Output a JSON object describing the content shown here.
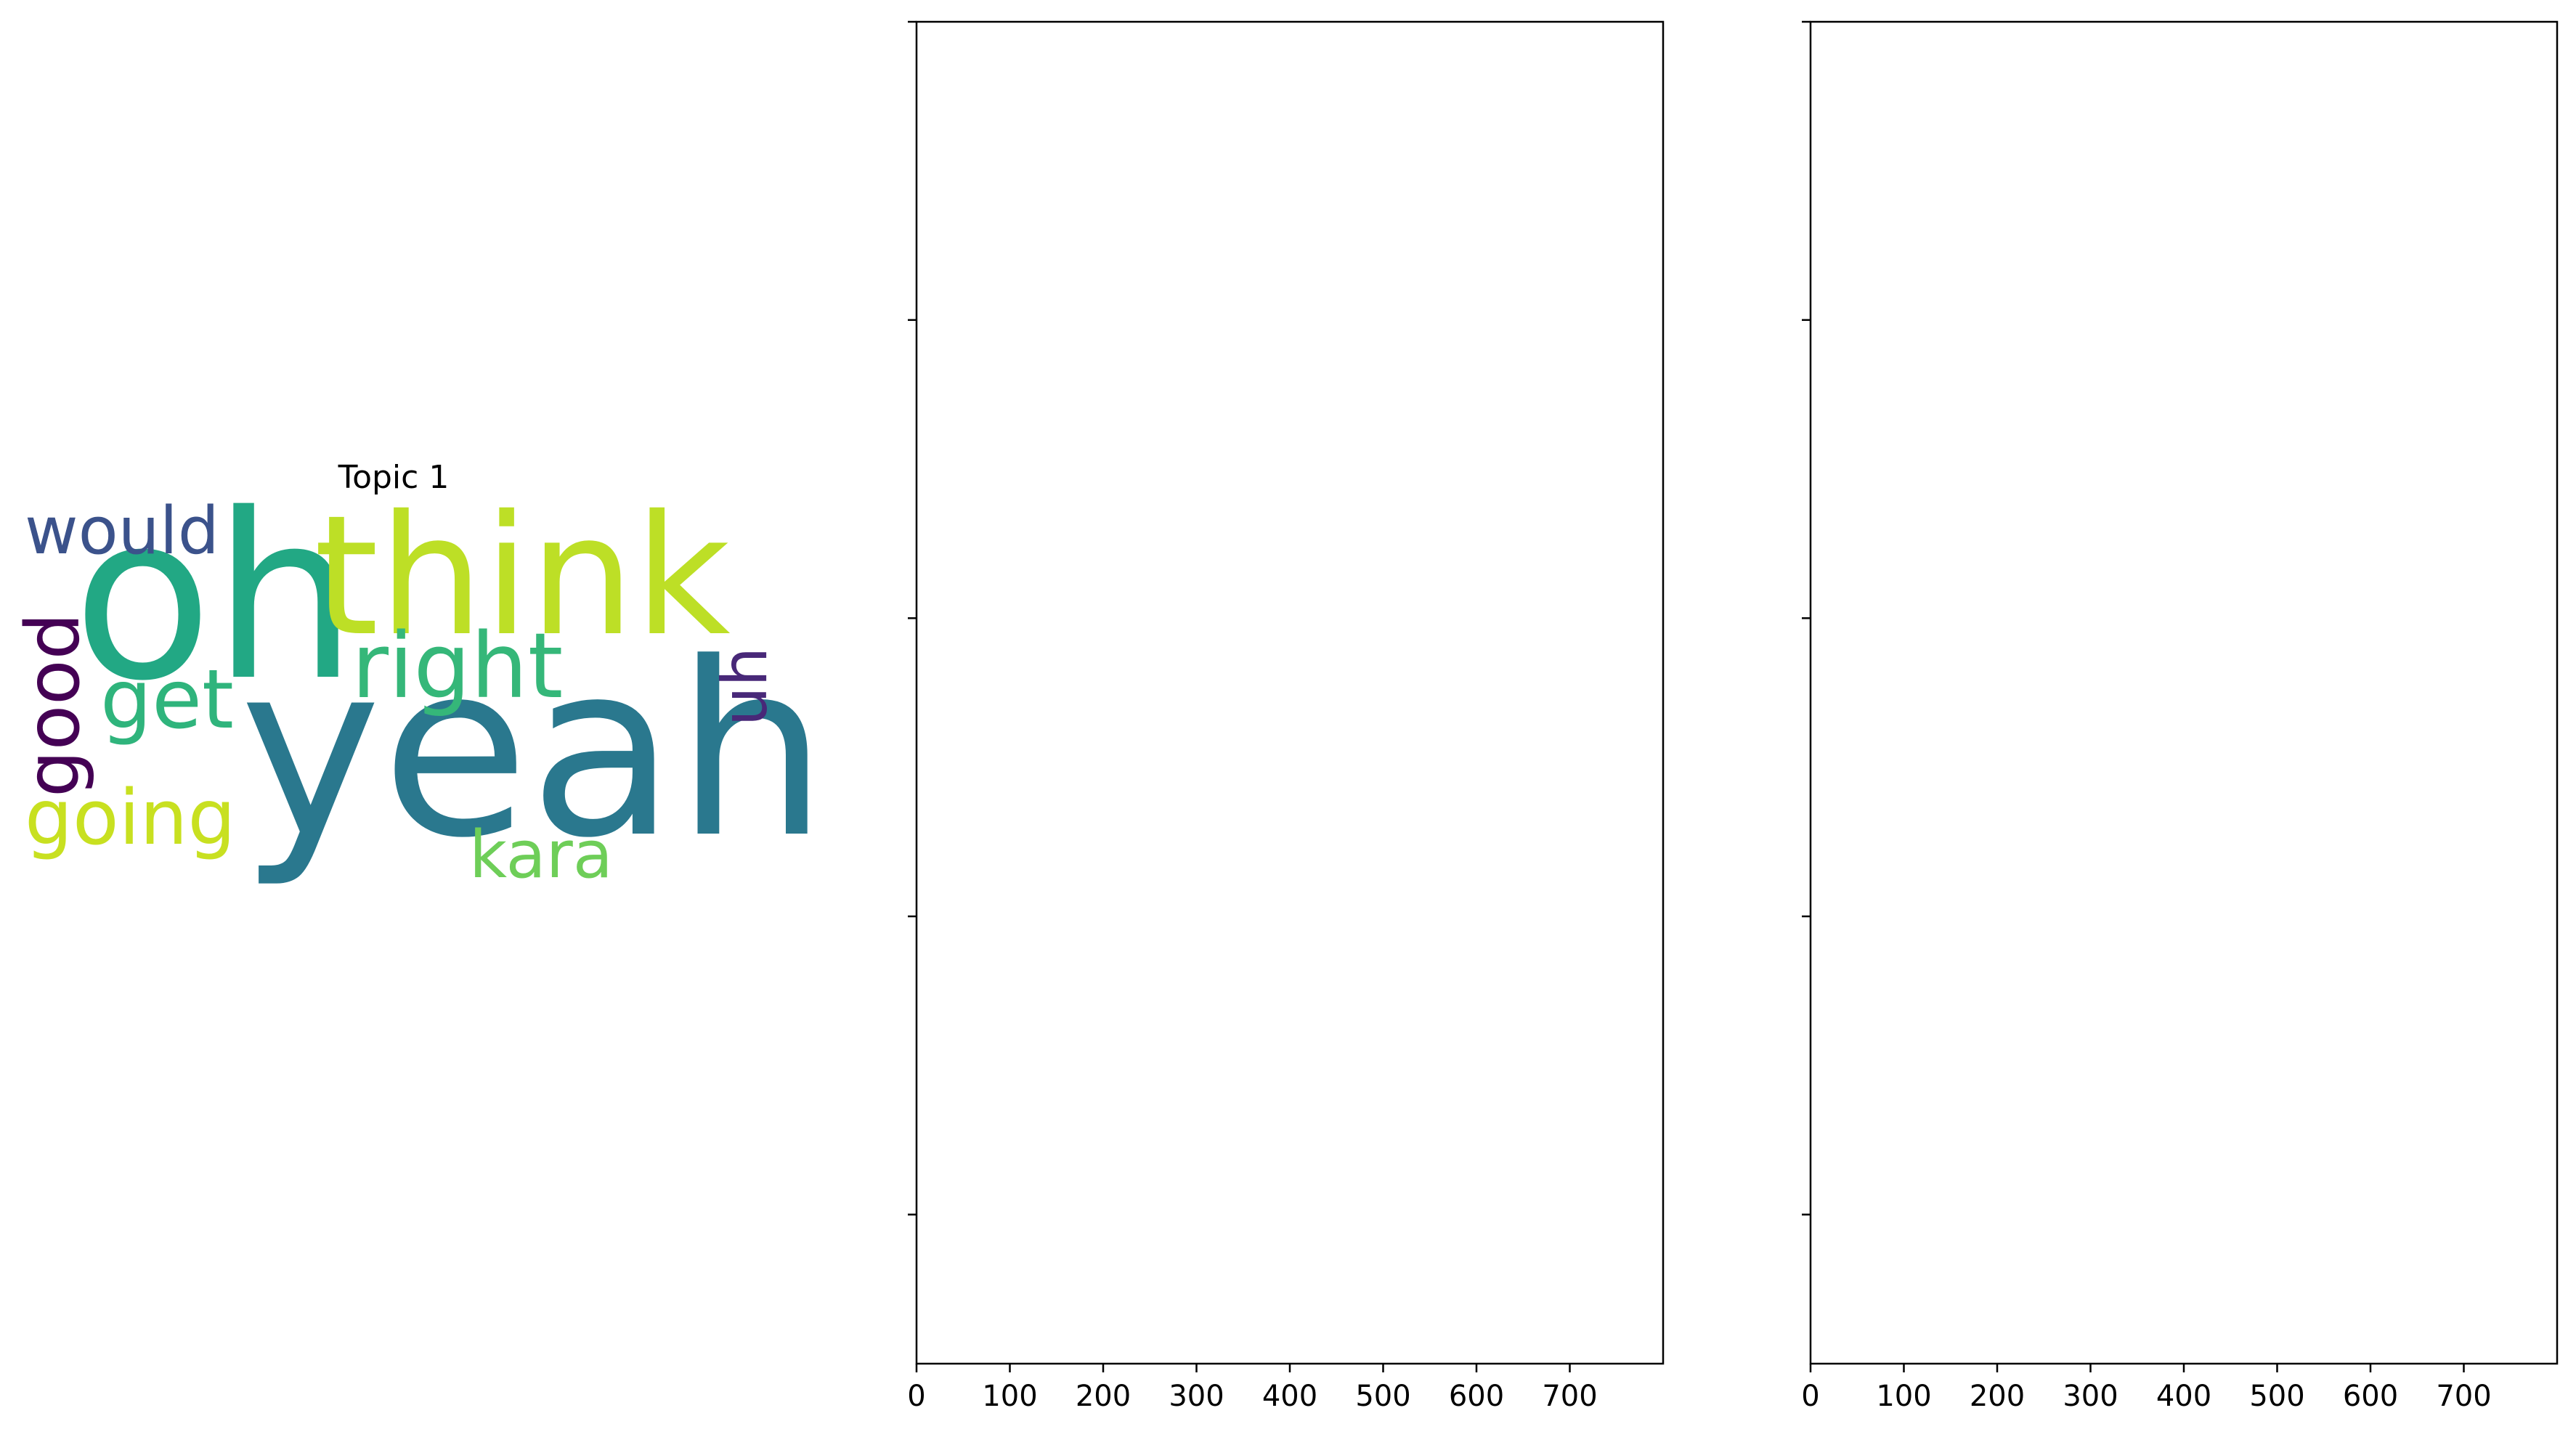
{
  "chart_data": [
    {
      "type": "wordcloud",
      "title": "Topic 1",
      "words": [
        {
          "text": "oh",
          "color": "#22a884"
        },
        {
          "text": "think",
          "color": "#bddf26"
        },
        {
          "text": "yeah",
          "color": "#2a788e"
        },
        {
          "text": "would",
          "color": "#3b528b"
        },
        {
          "text": "right",
          "color": "#35b779"
        },
        {
          "text": "get",
          "color": "#2fb47c"
        },
        {
          "text": "good",
          "color": "#440154"
        },
        {
          "text": "uh",
          "color": "#482878"
        },
        {
          "text": "going",
          "color": "#c8e020"
        },
        {
          "text": "kara",
          "color": "#6ece58"
        }
      ]
    },
    {
      "type": "empty",
      "title": "",
      "xlabel": "",
      "ylabel": "",
      "xlim": [
        0,
        800
      ],
      "xticks": [
        0,
        100,
        200,
        300,
        400,
        500,
        600,
        700
      ],
      "yticks": 5,
      "grid": false
    },
    {
      "type": "empty",
      "title": "",
      "xlabel": "",
      "ylabel": "",
      "xlim": [
        0,
        800
      ],
      "xticks": [
        0,
        100,
        200,
        300,
        400,
        500,
        600,
        700
      ],
      "yticks": 5,
      "grid": false
    }
  ]
}
